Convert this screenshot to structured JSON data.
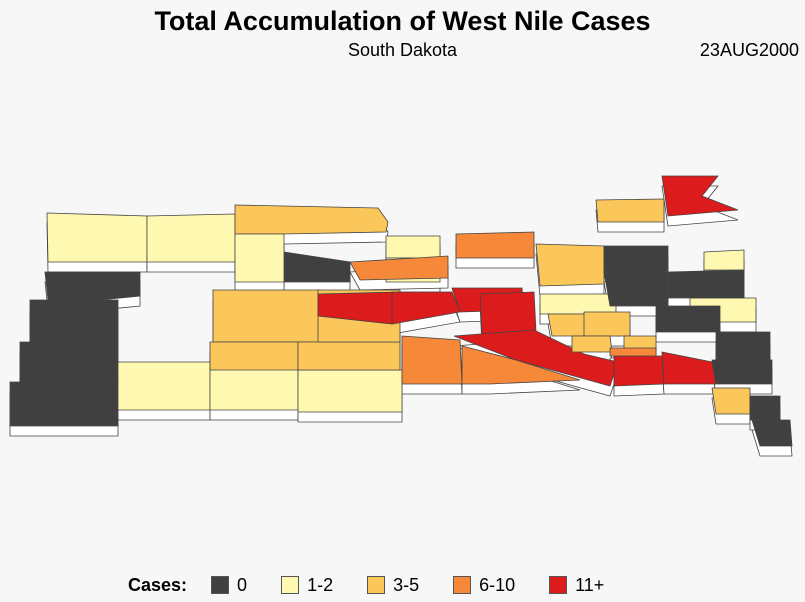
{
  "title": "Total Accumulation of West Nile Cases",
  "subtitle": "South Dakota",
  "date": "23AUG2000",
  "legend": {
    "title": "Cases:",
    "items": [
      {
        "label": "0",
        "color": "#404040",
        "class": "c0"
      },
      {
        "label": "1-2",
        "color": "#fff8b0",
        "class": "c1"
      },
      {
        "label": "3-5",
        "color": "#fbc75a",
        "class": "c2"
      },
      {
        "label": "6-10",
        "color": "#f6883a",
        "class": "c3"
      },
      {
        "label": "11+",
        "color": "#dc1c1c",
        "class": "c4"
      }
    ]
  },
  "side_color": "#ffffff",
  "border_color": "#444444"
}
